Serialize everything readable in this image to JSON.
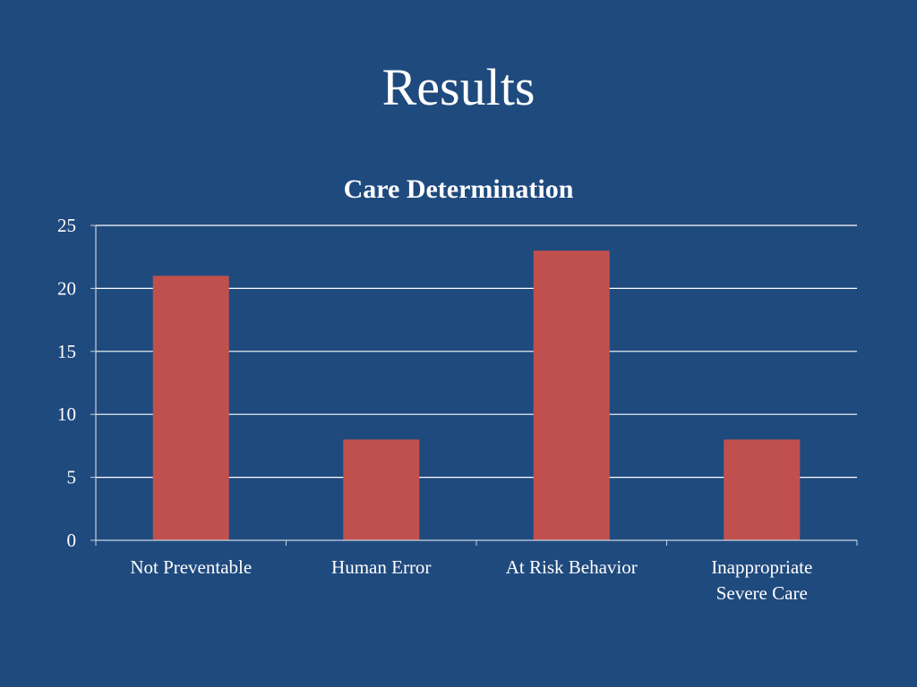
{
  "slide": {
    "title": "Results",
    "background": "#1f4a7e"
  },
  "chart_data": {
    "type": "bar",
    "title": "Care Determination",
    "categories": [
      "Not Preventable",
      "Human Error",
      "At Risk Behavior",
      "Inappropriate Severe Care"
    ],
    "category_lines": [
      [
        "Not Preventable"
      ],
      [
        "Human Error"
      ],
      [
        "At Risk Behavior"
      ],
      [
        "Inappropriate",
        "Severe Care"
      ]
    ],
    "values": [
      21,
      8,
      23,
      8
    ],
    "yticks": [
      "0",
      "5",
      "10",
      "15",
      "20",
      "25"
    ],
    "ylim": [
      0,
      25
    ],
    "grid": true,
    "legend": "none",
    "bar_color": "#c0504d",
    "grid_color": "#ffffff"
  }
}
